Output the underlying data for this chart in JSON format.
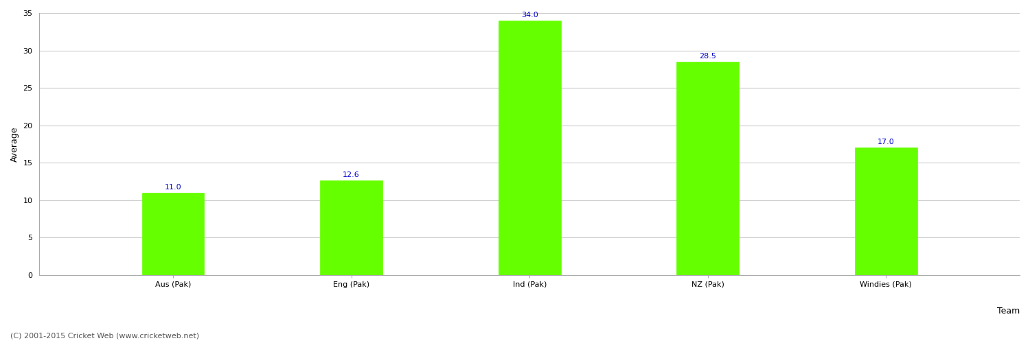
{
  "categories": [
    "Aus (Pak)",
    "Eng (Pak)",
    "Ind (Pak)",
    "NZ (Pak)",
    "Windies (Pak)"
  ],
  "values": [
    11.0,
    12.6,
    34.0,
    28.5,
    17.0
  ],
  "bar_color": "#66ff00",
  "bar_edge_color": "#66ff00",
  "value_label_color": "#0000cc",
  "value_label_fontsize": 8,
  "xlabel": "Team",
  "ylabel": "Average",
  "ylim": [
    0,
    35
  ],
  "yticks": [
    0,
    5,
    10,
    15,
    20,
    25,
    30,
    35
  ],
  "grid_color": "#cccccc",
  "background_color": "#ffffff",
  "axis_label_fontsize": 9,
  "tick_fontsize": 8,
  "bar_width": 0.35,
  "footer_text": "(C) 2001-2015 Cricket Web (www.cricketweb.net)",
  "footer_fontsize": 8,
  "footer_color": "#555555"
}
